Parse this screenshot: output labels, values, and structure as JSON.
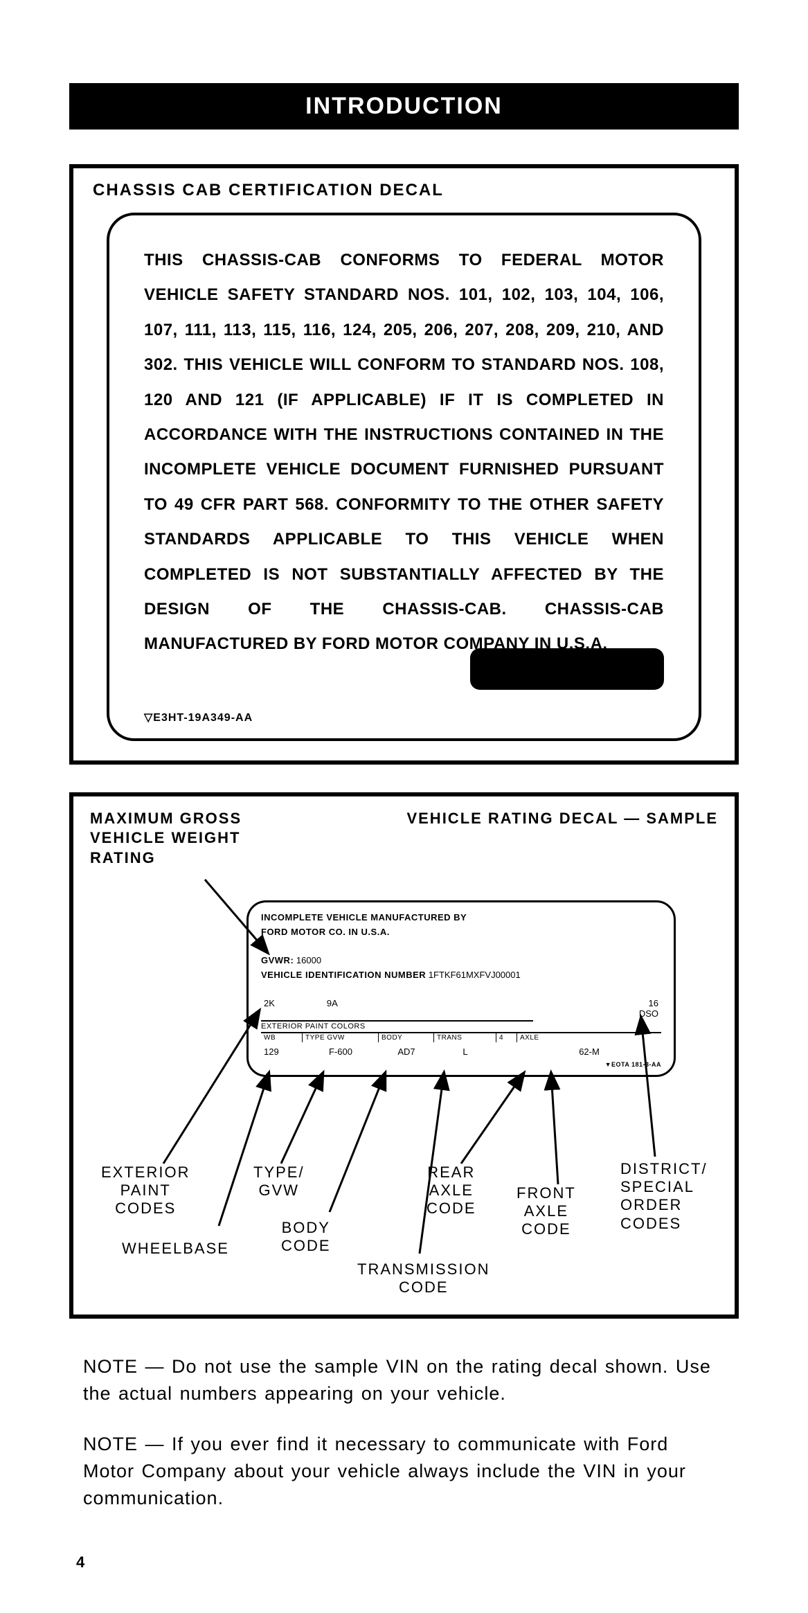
{
  "header": {
    "title": "INTRODUCTION"
  },
  "decal1": {
    "title": "CHASSIS CAB CERTIFICATION DECAL",
    "body_html": "THIS CHASSIS-CAB <b>CONFORMS</b> TO FEDERAL MOTOR VEHICLE SAFETY STANDARD NOS. 101, 102, 103, 104, 106, 107, 111, 113, 115, 116, 124, 205, 206, 207, 208, 209, 210, AND 302. THIS VEHICLE WILL <b>CONFORM</b> TO STANDARD NOS. 108, 120 AND 121 (IF APPLICABLE) IF IT IS <b>COMPLETED</b> IN ACCORDANCE WITH THE INSTRUCTIONS CONTAINED IN THE INCOMPLETE VEHICLE DOCUMENT FURNISHED PURSUANT TO 49 CFR PART 568. CONFORMITY TO THE OTHER SAFETY STANDARDS APPLICABLE TO THIS VEHICLE WHEN COMPLETED IS NOT SUBSTANTIALLY AFFECTED BY THE DESIGN OF THE CHASSIS-CAB. CHASSIS-CAB MANUFACTURED BY FORD MOTOR COMPANY IN U.S.A.",
    "part_no": "▽E3HT-19A349-AA"
  },
  "decal2": {
    "gvwr_label": "MAXIMUM GROSS VEHICLE WEIGHT RATING",
    "sample_title": "VEHICLE RATING DECAL — SAMPLE",
    "mfr_line1": "INCOMPLETE VEHICLE MANUFACTURED BY",
    "mfr_line2": "FORD MOTOR CO. IN U.S.A.",
    "gvwr_label2": "GVWR:",
    "gvwr_value": "16000",
    "vin_label": "VEHICLE IDENTIFICATION NUMBER",
    "vin_value": "1FTKF61MXFVJ00001",
    "paint_code1": "2K",
    "paint_code2": "9A",
    "dso_code": "16",
    "dso_label": "DSO",
    "paint_colors_label": "EXTERIOR PAINT COLORS",
    "headers": [
      "WB",
      "TYPE  GVW",
      "BODY",
      "TRANS",
      "4",
      "AXLE"
    ],
    "values": {
      "wb": "129",
      "type": "F-600",
      "body": "AD7",
      "trans": "L",
      "axle": "62-M"
    },
    "tiny_part": "▼EOTA 181-3-AA",
    "callouts": {
      "ext_paint": "EXTERIOR\nPAINT\nCODES",
      "wheelbase": "WHEELBASE",
      "type_gvw": "TYPE/\nGVW",
      "body_code": "BODY\nCODE",
      "trans_code": "TRANSMISSION\nCODE",
      "rear_axle": "REAR\nAXLE\nCODE",
      "front_axle": "FRONT\nAXLE\nCODE",
      "dso": "DISTRICT/\nSPECIAL\nORDER\nCODES"
    }
  },
  "notes": {
    "note1": "NOTE — Do not use the sample VIN on the rating decal shown. Use the actual numbers appearing on your vehicle.",
    "note2": "NOTE — If you ever find it necessary to communicate with Ford Motor Company about your vehicle always include the VIN in your communication."
  },
  "page_no": "4",
  "colors": {
    "black": "#000000",
    "white": "#ffffff"
  }
}
